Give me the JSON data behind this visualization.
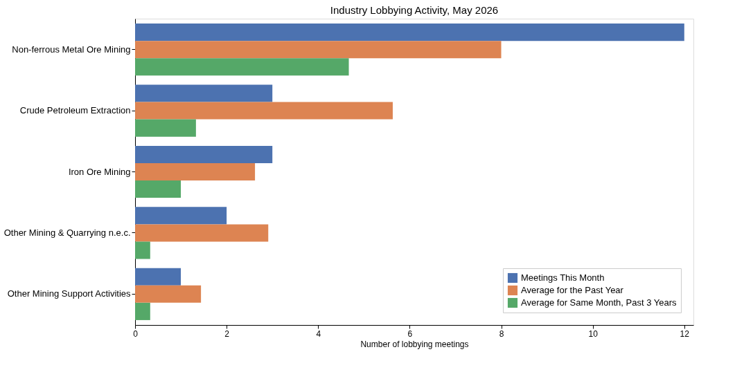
{
  "chart_data": {
    "type": "bar",
    "orientation": "horizontal",
    "title": "Industry Lobbying Activity, May 2026",
    "xlabel": "Number of lobbying meetings",
    "categories": [
      "Non-ferrous Metal Ore Mining",
      "Crude Petroleum Extraction",
      "Iron Ore Mining",
      "Other Mining & Quarrying n.e.c.",
      "Other Mining Support Activities"
    ],
    "series": [
      {
        "name": "Meetings This Month",
        "color": "#4c72b0",
        "values": [
          12,
          3,
          3,
          2,
          1
        ]
      },
      {
        "name": "Average for the Past Year",
        "color": "#dd8452",
        "values": [
          8,
          5.63,
          2.62,
          2.91,
          1.44
        ]
      },
      {
        "name": "Average for Same Month, Past 3 Years",
        "color": "#55a868",
        "values": [
          4.67,
          1.33,
          1,
          0.33,
          0.33
        ]
      }
    ],
    "xlim": [
      0,
      12.2
    ],
    "xticks": [
      0,
      2,
      4,
      6,
      8,
      10,
      12
    ],
    "grid": false,
    "legend": "bottom right"
  }
}
